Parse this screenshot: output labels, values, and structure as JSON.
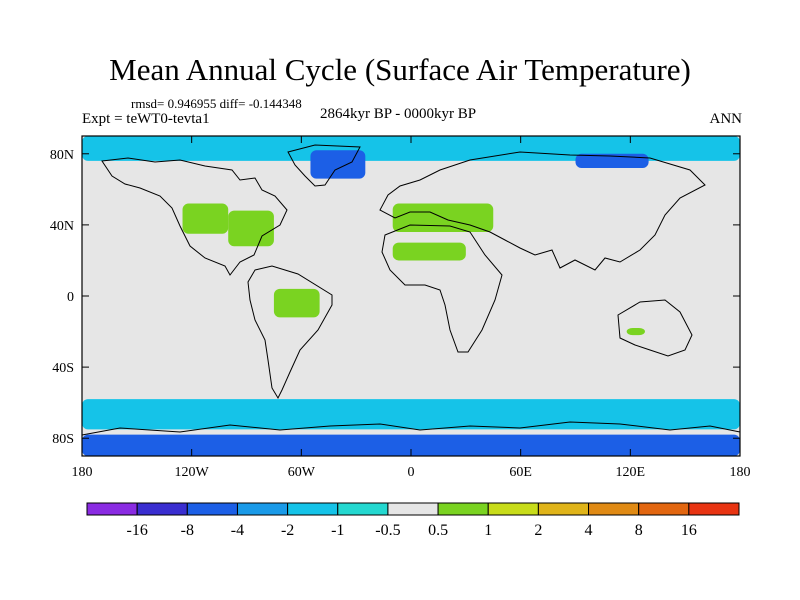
{
  "chart_data": {
    "type": "heatmap",
    "title": "Mean Annual Cycle (Surface Air Temperature)",
    "stats_text": "rmsd= 0.946955 diff= -0.144348",
    "experiment_text": "Expt = teWT0-tevta1",
    "period_text": "2864kyr BP - 0000kyr BP",
    "season_text": "ANN",
    "xticks": [
      "180",
      "120W",
      "60W",
      "0",
      "60E",
      "120E",
      "180"
    ],
    "xtick_values": [
      -180,
      -120,
      -60,
      0,
      60,
      120,
      180
    ],
    "yticks": [
      "80N",
      "40N",
      "0",
      "40S",
      "80S"
    ],
    "ytick_values": [
      80,
      40,
      0,
      -40,
      -80
    ],
    "xlim": [
      -180,
      180
    ],
    "ylim": [
      -90,
      90
    ],
    "colorbar": {
      "colors": [
        "#8a2be2",
        "#3a2ed0",
        "#1c5fe6",
        "#1a9ae8",
        "#15c3e8",
        "#24d8d0",
        "#e6e6e6",
        "#7ad321",
        "#c8dc1a",
        "#e0b419",
        "#e08a14",
        "#e26610",
        "#e83412"
      ],
      "labels": [
        "-16",
        "-8",
        "-4",
        "-2",
        "-1",
        "-0.5",
        "0.5",
        "1",
        "2",
        "4",
        "8",
        "16"
      ]
    },
    "regions": [
      {
        "name": "arctic-ocean",
        "cls": 4,
        "lon": [
          -180,
          180
        ],
        "lat": [
          76,
          90
        ]
      },
      {
        "name": "greenland",
        "cls": 2,
        "lon": [
          -55,
          -25
        ],
        "lat": [
          66,
          82
        ]
      },
      {
        "name": "central-siberia",
        "cls": 2,
        "lon": [
          90,
          130
        ],
        "lat": [
          72,
          80
        ]
      },
      {
        "name": "north-america-west",
        "cls": 7,
        "lon": [
          -125,
          -100
        ],
        "lat": [
          35,
          52
        ]
      },
      {
        "name": "north-america-east",
        "cls": 7,
        "lon": [
          -100,
          -75
        ],
        "lat": [
          28,
          48
        ]
      },
      {
        "name": "europe-mediterranean",
        "cls": 7,
        "lon": [
          -10,
          45
        ],
        "lat": [
          36,
          52
        ]
      },
      {
        "name": "north-africa",
        "cls": 7,
        "lon": [
          -10,
          30
        ],
        "lat": [
          20,
          30
        ]
      },
      {
        "name": "amazon",
        "cls": 7,
        "lon": [
          -75,
          -50
        ],
        "lat": [
          -12,
          4
        ]
      },
      {
        "name": "australia-west",
        "cls": 7,
        "lon": [
          118,
          128
        ],
        "lat": [
          -22,
          -18
        ]
      },
      {
        "name": "southern-ocean",
        "cls": 4,
        "lon": [
          -180,
          180
        ],
        "lat": [
          -75,
          -58
        ]
      },
      {
        "name": "antarctica-coast",
        "cls": 2,
        "lon": [
          -180,
          180
        ],
        "lat": [
          -90,
          -78
        ]
      }
    ]
  }
}
